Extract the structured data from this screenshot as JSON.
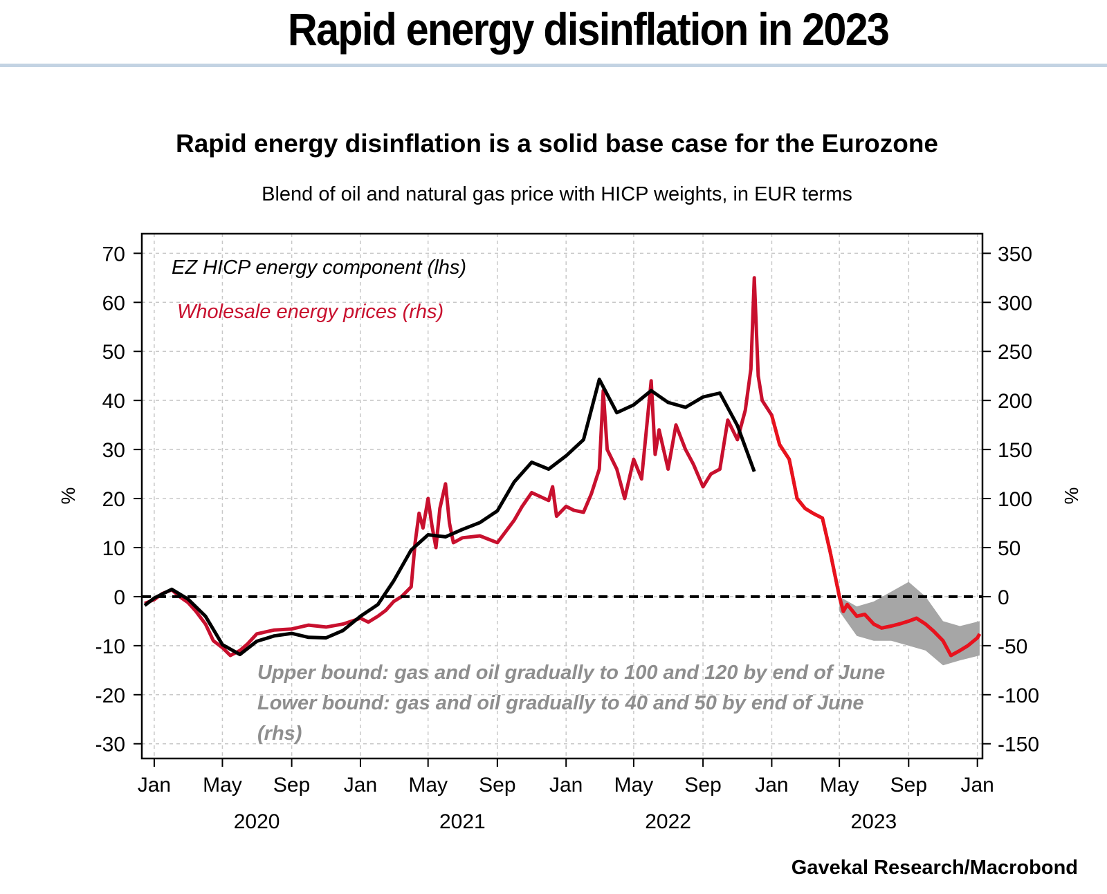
{
  "header": {
    "title": "Rapid energy disinflation in 2023"
  },
  "source": "Gavekal Research/Macrobond",
  "chart_data": {
    "type": "line",
    "title": "Rapid energy disinflation is a solid base case for the Eurozone",
    "subtitle": "Blend of oil and natural gas price with HICP weights, in EUR terms",
    "ylabel_left": "%",
    "ylabel_right": "%",
    "ylim_left": [
      -33,
      74
    ],
    "ylim_right": [
      -165,
      370
    ],
    "yticks_left": [
      70,
      60,
      50,
      40,
      30,
      20,
      10,
      0,
      -10,
      -20,
      -30
    ],
    "ytick_labels_left": [
      "70",
      "60",
      "50",
      "40",
      "30",
      "20",
      "10",
      "0",
      "-10",
      "-20",
      "-30"
    ],
    "yticks_right": [
      350,
      300,
      250,
      200,
      150,
      100,
      50,
      0,
      -50,
      -100,
      -150
    ],
    "ytick_labels_right": [
      "350",
      "300",
      "250",
      "200",
      "150",
      "100",
      "50",
      "0",
      "-50",
      "-100",
      "-150"
    ],
    "x_range": [
      "2019-12-10",
      "2024-01-10"
    ],
    "x_ticks": [
      {
        "date": "2020-01-01",
        "label": "Jan"
      },
      {
        "date": "2020-05-01",
        "label": "May"
      },
      {
        "date": "2020-09-01",
        "label": "Sep"
      },
      {
        "date": "2021-01-01",
        "label": "Jan"
      },
      {
        "date": "2021-05-01",
        "label": "May"
      },
      {
        "date": "2021-09-01",
        "label": "Sep"
      },
      {
        "date": "2022-01-01",
        "label": "Jan"
      },
      {
        "date": "2022-05-01",
        "label": "May"
      },
      {
        "date": "2022-09-01",
        "label": "Sep"
      },
      {
        "date": "2023-01-01",
        "label": "Jan"
      },
      {
        "date": "2023-05-01",
        "label": "May"
      },
      {
        "date": "2023-09-01",
        "label": "Sep"
      },
      {
        "date": "2024-01-01",
        "label": "Jan"
      }
    ],
    "year_labels": [
      {
        "date": "2020-07-01",
        "label": "2020"
      },
      {
        "date": "2021-07-01",
        "label": "2021"
      },
      {
        "date": "2022-07-01",
        "label": "2022"
      },
      {
        "date": "2023-07-01",
        "label": "2023"
      }
    ],
    "grid": true,
    "zero_line": "dashed",
    "legend": {
      "placement": "top-left",
      "entries": [
        {
          "label": "EZ HICP energy component (lhs)",
          "color": "#000000"
        },
        {
          "label": "Wholesale energy prices (rhs)",
          "color": "#c8102e"
        }
      ]
    },
    "annotation": [
      "Upper bound: gas and oil gradually to 100 and 120 by end of June",
      "Lower bound: gas and oil gradually  to 40 and 50 by end of June",
      " (rhs)"
    ],
    "series": [
      {
        "name": "EZ HICP energy component (lhs)",
        "axis": "left",
        "color": "#000000",
        "points": [
          [
            "2019-12-15",
            -1.8
          ],
          [
            "2020-01-01",
            -0.3
          ],
          [
            "2020-02-01",
            1.5
          ],
          [
            "2020-03-01",
            -0.5
          ],
          [
            "2020-04-01",
            -4.0
          ],
          [
            "2020-05-01",
            -9.8
          ],
          [
            "2020-06-01",
            -11.8
          ],
          [
            "2020-07-01",
            -9.1
          ],
          [
            "2020-08-01",
            -8.0
          ],
          [
            "2020-09-01",
            -7.5
          ],
          [
            "2020-10-01",
            -8.3
          ],
          [
            "2020-11-01",
            -8.4
          ],
          [
            "2020-12-01",
            -6.9
          ],
          [
            "2021-01-01",
            -4.0
          ],
          [
            "2021-02-01",
            -1.6
          ],
          [
            "2021-03-01",
            3.2
          ],
          [
            "2021-04-01",
            9.5
          ],
          [
            "2021-05-01",
            12.6
          ],
          [
            "2021-06-01",
            12.2
          ],
          [
            "2021-07-01",
            13.7
          ],
          [
            "2021-08-01",
            15.1
          ],
          [
            "2021-09-01",
            17.5
          ],
          [
            "2021-10-01",
            23.4
          ],
          [
            "2021-11-01",
            27.4
          ],
          [
            "2021-12-01",
            26.0
          ],
          [
            "2022-01-01",
            28.7
          ],
          [
            "2022-02-01",
            32.0
          ],
          [
            "2022-03-01",
            44.3
          ],
          [
            "2022-04-01",
            37.5
          ],
          [
            "2022-05-01",
            39.1
          ],
          [
            "2022-06-01",
            42.0
          ],
          [
            "2022-07-01",
            39.6
          ],
          [
            "2022-08-01",
            38.6
          ],
          [
            "2022-09-01",
            40.7
          ],
          [
            "2022-10-01",
            41.5
          ],
          [
            "2022-11-01",
            34.9
          ],
          [
            "2022-12-01",
            25.5
          ]
        ]
      },
      {
        "name": "Wholesale energy prices (rhs)",
        "axis": "right",
        "color": "#c8102e",
        "points": [
          [
            "2019-12-15",
            -7
          ],
          [
            "2020-01-01",
            -3
          ],
          [
            "2020-01-15",
            3
          ],
          [
            "2020-02-01",
            7
          ],
          [
            "2020-02-15",
            0
          ],
          [
            "2020-03-01",
            -6
          ],
          [
            "2020-03-15",
            -15
          ],
          [
            "2020-04-01",
            -28
          ],
          [
            "2020-04-15",
            -45
          ],
          [
            "2020-05-01",
            -52
          ],
          [
            "2020-05-15",
            -60
          ],
          [
            "2020-06-01",
            -55
          ],
          [
            "2020-06-15",
            -48
          ],
          [
            "2020-07-01",
            -38
          ],
          [
            "2020-08-01",
            -34
          ],
          [
            "2020-09-01",
            -33
          ],
          [
            "2020-10-01",
            -29
          ],
          [
            "2020-11-01",
            -31
          ],
          [
            "2020-12-01",
            -28
          ],
          [
            "2021-01-01",
            -22
          ],
          [
            "2021-01-15",
            -26
          ],
          [
            "2021-02-01",
            -20
          ],
          [
            "2021-02-15",
            -14
          ],
          [
            "2021-03-01",
            -5
          ],
          [
            "2021-03-15",
            0
          ],
          [
            "2021-04-01",
            10
          ],
          [
            "2021-04-08",
            55
          ],
          [
            "2021-04-15",
            85
          ],
          [
            "2021-04-22",
            70
          ],
          [
            "2021-05-01",
            100
          ],
          [
            "2021-05-08",
            72
          ],
          [
            "2021-05-15",
            50
          ],
          [
            "2021-05-22",
            90
          ],
          [
            "2021-06-01",
            115
          ],
          [
            "2021-06-08",
            75
          ],
          [
            "2021-06-15",
            55
          ],
          [
            "2021-07-01",
            60
          ],
          [
            "2021-08-01",
            62
          ],
          [
            "2021-09-01",
            55
          ],
          [
            "2021-10-01",
            78
          ],
          [
            "2021-10-15",
            92
          ],
          [
            "2021-11-01",
            106
          ],
          [
            "2021-12-01",
            98
          ],
          [
            "2021-12-08",
            112
          ],
          [
            "2021-12-15",
            82
          ],
          [
            "2022-01-01",
            92
          ],
          [
            "2022-01-15",
            88
          ],
          [
            "2022-02-01",
            86
          ],
          [
            "2022-02-15",
            105
          ],
          [
            "2022-03-01",
            130
          ],
          [
            "2022-03-08",
            210
          ],
          [
            "2022-03-15",
            150
          ],
          [
            "2022-04-01",
            130
          ],
          [
            "2022-04-15",
            100
          ],
          [
            "2022-05-01",
            140
          ],
          [
            "2022-05-15",
            120
          ],
          [
            "2022-06-01",
            220
          ],
          [
            "2022-06-08",
            145
          ],
          [
            "2022-06-15",
            170
          ],
          [
            "2022-07-01",
            130
          ],
          [
            "2022-07-15",
            175
          ],
          [
            "2022-08-01",
            150
          ],
          [
            "2022-08-15",
            135
          ],
          [
            "2022-09-01",
            112
          ],
          [
            "2022-09-15",
            125
          ],
          [
            "2022-10-01",
            130
          ],
          [
            "2022-10-15",
            180
          ],
          [
            "2022-11-01",
            160
          ],
          [
            "2022-11-15",
            190
          ],
          [
            "2022-11-25",
            232
          ],
          [
            "2022-12-01",
            325
          ],
          [
            "2022-12-08",
            225
          ],
          [
            "2022-12-15",
            200
          ],
          [
            "2023-01-01",
            185
          ],
          [
            "2023-01-15",
            155
          ],
          [
            "2023-02-01",
            140
          ],
          [
            "2023-02-15",
            100
          ],
          [
            "2023-03-01",
            90
          ],
          [
            "2023-03-15",
            85
          ],
          [
            "2023-04-01",
            80
          ],
          [
            "2023-04-15",
            45
          ],
          [
            "2023-05-01",
            0
          ],
          [
            "2023-05-08",
            -15
          ],
          [
            "2023-05-15",
            -8
          ],
          [
            "2023-06-01",
            -20
          ],
          [
            "2023-06-15",
            -18
          ],
          [
            "2023-07-01",
            -28
          ],
          [
            "2023-07-15",
            -32
          ],
          [
            "2023-08-01",
            -30
          ],
          [
            "2023-08-15",
            -28
          ],
          [
            "2023-09-01",
            -25
          ],
          [
            "2023-09-15",
            -22
          ],
          [
            "2023-10-01",
            -28
          ],
          [
            "2023-10-15",
            -35
          ],
          [
            "2023-11-01",
            -45
          ],
          [
            "2023-11-15",
            -60
          ],
          [
            "2023-12-01",
            -55
          ],
          [
            "2023-12-15",
            -50
          ],
          [
            "2024-01-01",
            -42
          ],
          [
            "2024-01-05",
            -38
          ]
        ]
      },
      {
        "name": "Upper bound",
        "axis": "right",
        "color": "#a6a6a6",
        "points": [
          [
            "2023-05-01",
            0
          ],
          [
            "2023-06-01",
            -10
          ],
          [
            "2023-07-01",
            -5
          ],
          [
            "2023-08-01",
            5
          ],
          [
            "2023-09-01",
            15
          ],
          [
            "2023-10-01",
            0
          ],
          [
            "2023-11-01",
            -25
          ],
          [
            "2023-12-01",
            -30
          ],
          [
            "2024-01-05",
            -25
          ]
        ]
      },
      {
        "name": "Lower bound",
        "axis": "right",
        "color": "#a6a6a6",
        "points": [
          [
            "2023-05-01",
            -15
          ],
          [
            "2023-06-01",
            -40
          ],
          [
            "2023-07-01",
            -45
          ],
          [
            "2023-08-01",
            -45
          ],
          [
            "2023-09-01",
            -50
          ],
          [
            "2023-10-01",
            -55
          ],
          [
            "2023-11-01",
            -70
          ],
          [
            "2023-12-01",
            -65
          ],
          [
            "2024-01-05",
            -60
          ]
        ]
      }
    ]
  }
}
